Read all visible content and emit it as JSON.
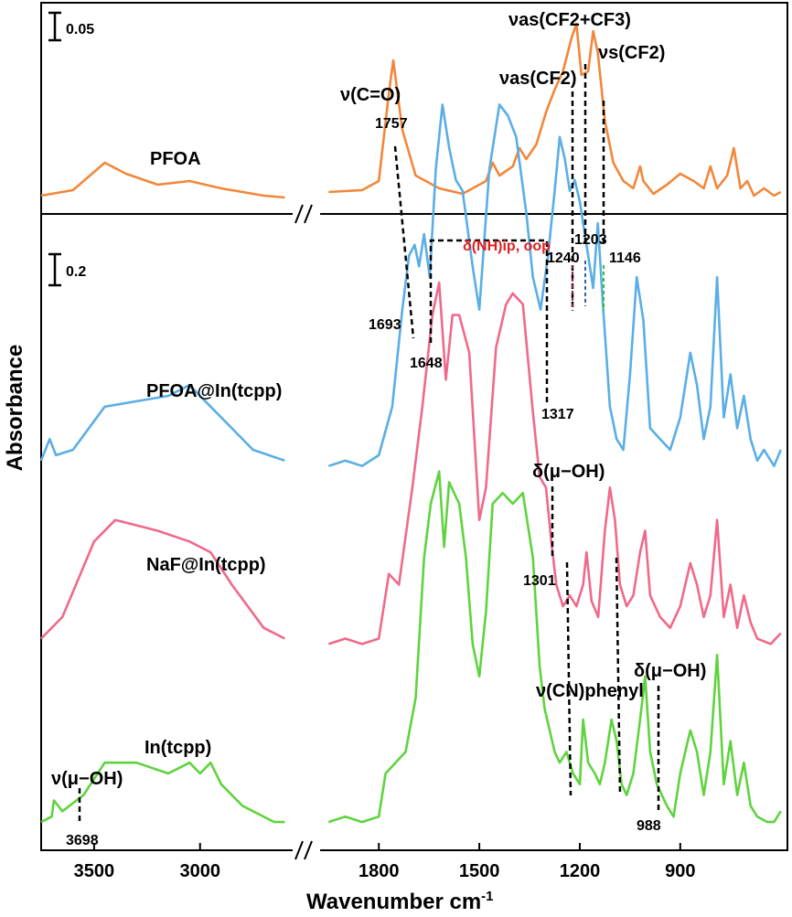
{
  "chart_data": {
    "type": "line",
    "xlabel": "Wavenumber cm",
    "xlabel_sup": "-1",
    "ylabel": "Absorbance",
    "x_axis": {
      "segments": [
        {
          "range": [
            3750,
            2550
          ],
          "ticks": [
            3500,
            3000
          ]
        },
        {
          "range": [
            2000,
            580
          ],
          "ticks": [
            1800,
            1500,
            1200,
            900
          ]
        }
      ],
      "reversed": true,
      "break": true
    },
    "panels": [
      {
        "name": "top",
        "scale_bar": "0.05"
      },
      {
        "name": "bottom",
        "scale_bar": "0.2"
      }
    ],
    "series": [
      {
        "name": "PFOA",
        "color": "#f2873a",
        "panel": "top",
        "points": [
          [
            3750,
            0.04
          ],
          [
            3600,
            0.07
          ],
          [
            3450,
            0.22
          ],
          [
            3350,
            0.16
          ],
          [
            3200,
            0.1
          ],
          [
            3050,
            0.12
          ],
          [
            2900,
            0.08
          ],
          [
            2700,
            0.04
          ],
          [
            2600,
            0.03
          ],
          [
            1950,
            0.06
          ],
          [
            1850,
            0.07
          ],
          [
            1800,
            0.12
          ],
          [
            1770,
            0.6
          ],
          [
            1757,
            0.78
          ],
          [
            1730,
            0.4
          ],
          [
            1690,
            0.15
          ],
          [
            1620,
            0.08
          ],
          [
            1550,
            0.05
          ],
          [
            1480,
            0.12
          ],
          [
            1460,
            0.22
          ],
          [
            1440,
            0.15
          ],
          [
            1400,
            0.2
          ],
          [
            1380,
            0.3
          ],
          [
            1360,
            0.24
          ],
          [
            1330,
            0.32
          ],
          [
            1300,
            0.5
          ],
          [
            1275,
            0.62
          ],
          [
            1250,
            0.72
          ],
          [
            1225,
            0.9
          ],
          [
            1210,
            0.98
          ],
          [
            1195,
            0.7
          ],
          [
            1175,
            0.72
          ],
          [
            1160,
            0.94
          ],
          [
            1146,
            0.82
          ],
          [
            1125,
            0.45
          ],
          [
            1100,
            0.22
          ],
          [
            1070,
            0.12
          ],
          [
            1040,
            0.08
          ],
          [
            1020,
            0.2
          ],
          [
            1010,
            0.12
          ],
          [
            980,
            0.05
          ],
          [
            940,
            0.1
          ],
          [
            900,
            0.16
          ],
          [
            860,
            0.12
          ],
          [
            830,
            0.08
          ],
          [
            810,
            0.2
          ],
          [
            790,
            0.08
          ],
          [
            760,
            0.15
          ],
          [
            740,
            0.3
          ],
          [
            720,
            0.08
          ],
          [
            700,
            0.12
          ],
          [
            680,
            0.04
          ],
          [
            650,
            0.08
          ],
          [
            620,
            0.04
          ],
          [
            600,
            0.06
          ]
        ]
      },
      {
        "name": "PFOA@In(tcpp)",
        "color": "#5aaee6",
        "panel": "bottom",
        "offset": 0.66,
        "points": [
          [
            3750,
            0.02
          ],
          [
            3710,
            0.06
          ],
          [
            3680,
            0.03
          ],
          [
            3600,
            0.04
          ],
          [
            3450,
            0.12
          ],
          [
            3300,
            0.13
          ],
          [
            3150,
            0.14
          ],
          [
            3050,
            0.16
          ],
          [
            2950,
            0.12
          ],
          [
            2850,
            0.08
          ],
          [
            2750,
            0.04
          ],
          [
            2600,
            0.02
          ],
          [
            1950,
            0.01
          ],
          [
            1900,
            0.02
          ],
          [
            1850,
            0.01
          ],
          [
            1800,
            0.03
          ],
          [
            1760,
            0.12
          ],
          [
            1730,
            0.3
          ],
          [
            1710,
            0.4
          ],
          [
            1693,
            0.42
          ],
          [
            1680,
            0.38
          ],
          [
            1665,
            0.44
          ],
          [
            1648,
            0.36
          ],
          [
            1630,
            0.56
          ],
          [
            1610,
            0.68
          ],
          [
            1590,
            0.6
          ],
          [
            1570,
            0.54
          ],
          [
            1550,
            0.52
          ],
          [
            1520,
            0.38
          ],
          [
            1500,
            0.3
          ],
          [
            1470,
            0.56
          ],
          [
            1440,
            0.68
          ],
          [
            1415,
            0.66
          ],
          [
            1390,
            0.62
          ],
          [
            1360,
            0.48
          ],
          [
            1340,
            0.36
          ],
          [
            1317,
            0.3
          ],
          [
            1295,
            0.4
          ],
          [
            1275,
            0.52
          ],
          [
            1260,
            0.62
          ],
          [
            1245,
            0.58
          ],
          [
            1230,
            0.52
          ],
          [
            1215,
            0.54
          ],
          [
            1200,
            0.5
          ],
          [
            1180,
            0.42
          ],
          [
            1160,
            0.34
          ],
          [
            1146,
            0.46
          ],
          [
            1130,
            0.3
          ],
          [
            1110,
            0.12
          ],
          [
            1090,
            0.06
          ],
          [
            1070,
            0.04
          ],
          [
            1050,
            0.18
          ],
          [
            1030,
            0.36
          ],
          [
            1010,
            0.28
          ],
          [
            990,
            0.08
          ],
          [
            960,
            0.06
          ],
          [
            930,
            0.04
          ],
          [
            900,
            0.1
          ],
          [
            870,
            0.22
          ],
          [
            850,
            0.16
          ],
          [
            830,
            0.06
          ],
          [
            810,
            0.12
          ],
          [
            790,
            0.36
          ],
          [
            770,
            0.1
          ],
          [
            750,
            0.18
          ],
          [
            730,
            0.08
          ],
          [
            710,
            0.14
          ],
          [
            690,
            0.06
          ],
          [
            670,
            0.02
          ],
          [
            650,
            0.04
          ],
          [
            620,
            0.01
          ],
          [
            600,
            0.04
          ]
        ]
      },
      {
        "name": "NaF@In(tcpp)",
        "color": "#ef6a8a",
        "panel": "bottom",
        "offset": 0.33,
        "points": [
          [
            3750,
            0.02
          ],
          [
            3650,
            0.06
          ],
          [
            3500,
            0.2
          ],
          [
            3400,
            0.24
          ],
          [
            3200,
            0.22
          ],
          [
            3050,
            0.2
          ],
          [
            2950,
            0.18
          ],
          [
            2850,
            0.12
          ],
          [
            2700,
            0.04
          ],
          [
            2600,
            0.02
          ],
          [
            1950,
            0.01
          ],
          [
            1900,
            0.02
          ],
          [
            1850,
            0.01
          ],
          [
            1800,
            0.02
          ],
          [
            1770,
            0.14
          ],
          [
            1740,
            0.12
          ],
          [
            1700,
            0.3
          ],
          [
            1670,
            0.45
          ],
          [
            1640,
            0.62
          ],
          [
            1620,
            0.68
          ],
          [
            1600,
            0.5
          ],
          [
            1580,
            0.62
          ],
          [
            1560,
            0.62
          ],
          [
            1530,
            0.55
          ],
          [
            1500,
            0.24
          ],
          [
            1480,
            0.3
          ],
          [
            1450,
            0.56
          ],
          [
            1420,
            0.64
          ],
          [
            1400,
            0.66
          ],
          [
            1370,
            0.64
          ],
          [
            1340,
            0.44
          ],
          [
            1320,
            0.32
          ],
          [
            1301,
            0.3
          ],
          [
            1285,
            0.2
          ],
          [
            1270,
            0.12
          ],
          [
            1250,
            0.08
          ],
          [
            1230,
            0.1
          ],
          [
            1210,
            0.08
          ],
          [
            1190,
            0.12
          ],
          [
            1180,
            0.18
          ],
          [
            1165,
            0.09
          ],
          [
            1145,
            0.06
          ],
          [
            1125,
            0.22
          ],
          [
            1110,
            0.3
          ],
          [
            1095,
            0.24
          ],
          [
            1080,
            0.12
          ],
          [
            1060,
            0.08
          ],
          [
            1040,
            0.1
          ],
          [
            1020,
            0.18
          ],
          [
            1005,
            0.22
          ],
          [
            990,
            0.1
          ],
          [
            960,
            0.06
          ],
          [
            930,
            0.04
          ],
          [
            900,
            0.08
          ],
          [
            870,
            0.16
          ],
          [
            850,
            0.12
          ],
          [
            830,
            0.06
          ],
          [
            810,
            0.1
          ],
          [
            790,
            0.24
          ],
          [
            770,
            0.06
          ],
          [
            750,
            0.12
          ],
          [
            730,
            0.04
          ],
          [
            710,
            0.1
          ],
          [
            690,
            0.05
          ],
          [
            670,
            0.02
          ],
          [
            630,
            0.01
          ],
          [
            600,
            0.03
          ]
        ]
      },
      {
        "name": "In(tcpp)",
        "color": "#5fd33e",
        "panel": "bottom",
        "offset": 0.0,
        "points": [
          [
            3750,
            0.01
          ],
          [
            3700,
            0.02
          ],
          [
            3690,
            0.05
          ],
          [
            3650,
            0.03
          ],
          [
            3550,
            0.06
          ],
          [
            3450,
            0.12
          ],
          [
            3300,
            0.12
          ],
          [
            3150,
            0.1
          ],
          [
            3050,
            0.12
          ],
          [
            3000,
            0.1
          ],
          [
            2950,
            0.12
          ],
          [
            2900,
            0.08
          ],
          [
            2800,
            0.04
          ],
          [
            2650,
            0.01
          ],
          [
            2600,
            0.01
          ],
          [
            1950,
            0.01
          ],
          [
            1900,
            0.02
          ],
          [
            1850,
            0.01
          ],
          [
            1800,
            0.02
          ],
          [
            1780,
            0.1
          ],
          [
            1750,
            0.12
          ],
          [
            1720,
            0.14
          ],
          [
            1690,
            0.24
          ],
          [
            1665,
            0.5
          ],
          [
            1645,
            0.6
          ],
          [
            1620,
            0.66
          ],
          [
            1605,
            0.52
          ],
          [
            1590,
            0.64
          ],
          [
            1560,
            0.6
          ],
          [
            1540,
            0.5
          ],
          [
            1520,
            0.34
          ],
          [
            1500,
            0.28
          ],
          [
            1480,
            0.4
          ],
          [
            1460,
            0.6
          ],
          [
            1430,
            0.62
          ],
          [
            1400,
            0.6
          ],
          [
            1370,
            0.62
          ],
          [
            1340,
            0.5
          ],
          [
            1320,
            0.3
          ],
          [
            1305,
            0.22
          ],
          [
            1290,
            0.18
          ],
          [
            1275,
            0.14
          ],
          [
            1260,
            0.12
          ],
          [
            1240,
            0.14
          ],
          [
            1220,
            0.1
          ],
          [
            1200,
            0.08
          ],
          [
            1190,
            0.2
          ],
          [
            1175,
            0.12
          ],
          [
            1155,
            0.1
          ],
          [
            1140,
            0.08
          ],
          [
            1125,
            0.12
          ],
          [
            1105,
            0.2
          ],
          [
            1090,
            0.16
          ],
          [
            1075,
            0.08
          ],
          [
            1060,
            0.06
          ],
          [
            1040,
            0.1
          ],
          [
            1020,
            0.2
          ],
          [
            1005,
            0.28
          ],
          [
            990,
            0.14
          ],
          [
            970,
            0.08
          ],
          [
            940,
            0.04
          ],
          [
            920,
            0.02
          ],
          [
            900,
            0.1
          ],
          [
            870,
            0.18
          ],
          [
            850,
            0.14
          ],
          [
            830,
            0.06
          ],
          [
            810,
            0.14
          ],
          [
            790,
            0.32
          ],
          [
            770,
            0.08
          ],
          [
            750,
            0.16
          ],
          [
            730,
            0.06
          ],
          [
            710,
            0.12
          ],
          [
            690,
            0.04
          ],
          [
            670,
            0.02
          ],
          [
            640,
            0.01
          ],
          [
            620,
            0.01
          ],
          [
            600,
            0.03
          ]
        ]
      }
    ],
    "series_labels": [
      "PFOA",
      "PFOA@In(tcpp)",
      "NaF@In(tcpp)",
      "In(tcpp)"
    ],
    "peak_labels": [
      "1757",
      "1240",
      "1203",
      "1146",
      "1693",
      "1648",
      "1317",
      "1301",
      "3698",
      "988"
    ],
    "mode_labels": {
      "co": "ν(C=O)",
      "cf2": "νas(CF2)",
      "cf_mix": "νas(CF2+CF3)",
      "cfs": "νs(CF2)",
      "nh": "δ(NH)ip, oop",
      "muoh1": "δ(μ−OH)",
      "cn": "ν(CN)phenyl",
      "muoh2": "δ(μ−OH)",
      "muoh3": "ν(μ−OH)"
    }
  }
}
